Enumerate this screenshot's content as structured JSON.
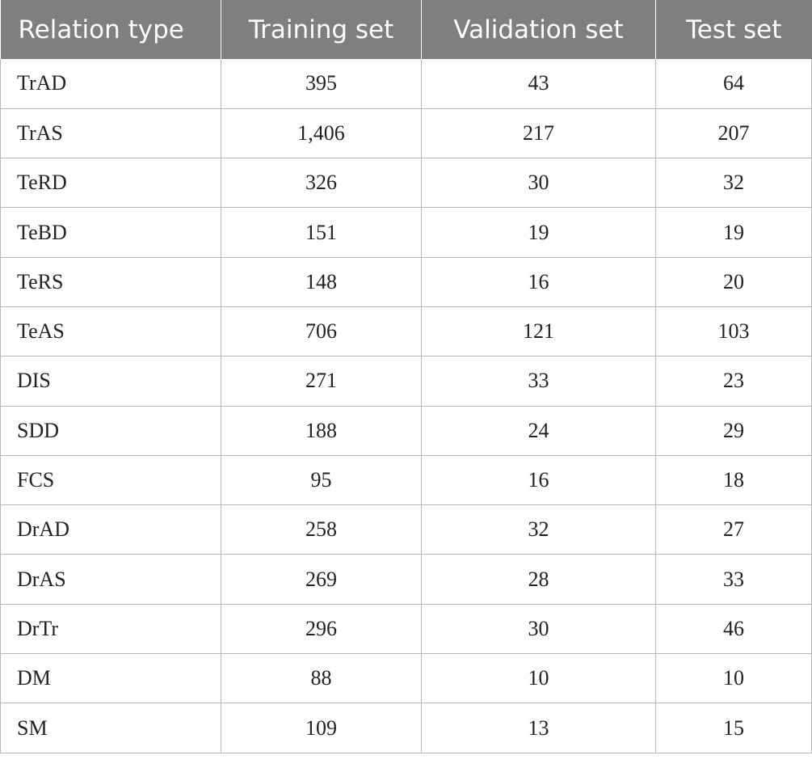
{
  "table": {
    "headers": [
      "Relation type",
      "Training set",
      "Validation set",
      "Test set"
    ],
    "rows": [
      [
        "TrAD",
        "395",
        "43",
        "64"
      ],
      [
        "TrAS",
        "1,406",
        "217",
        "207"
      ],
      [
        "TeRD",
        "326",
        "30",
        "32"
      ],
      [
        "TeBD",
        "151",
        "19",
        "19"
      ],
      [
        "TeRS",
        "148",
        "16",
        "20"
      ],
      [
        "TeAS",
        "706",
        "121",
        "103"
      ],
      [
        "DIS",
        "271",
        "33",
        "23"
      ],
      [
        "SDD",
        "188",
        "24",
        "29"
      ],
      [
        "FCS",
        "95",
        "16",
        "18"
      ],
      [
        "DrAD",
        "258",
        "32",
        "27"
      ],
      [
        "DrAS",
        "269",
        "28",
        "33"
      ],
      [
        "DrTr",
        "296",
        "30",
        "46"
      ],
      [
        "DM",
        "88",
        "10",
        "10"
      ],
      [
        "SM",
        "109",
        "13",
        "15"
      ]
    ]
  },
  "colors": {
    "header_bg": "#7f7f7f",
    "header_text": "#ffffff",
    "grid": "#b8b8b8",
    "cell_text": "#222222"
  }
}
